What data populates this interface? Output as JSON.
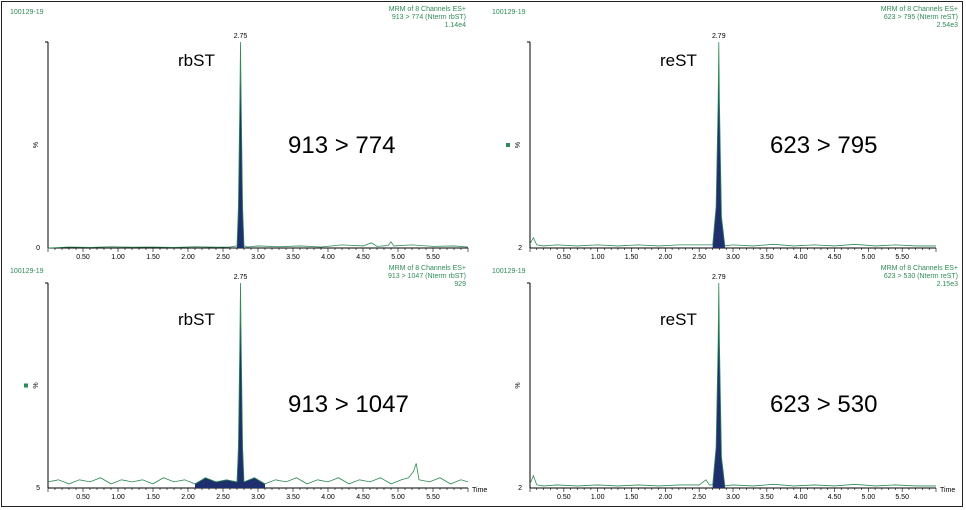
{
  "chart_data": [
    {
      "type": "line",
      "sample_id": "100129-19",
      "header": [
        "MRM of 8 Channels ES+",
        "913 > 774 (Nterm rbST)",
        "1.14e4"
      ],
      "analyte": "rbST",
      "transition": "913 > 774",
      "peak_label": "2.75",
      "ylabel": "%",
      "y_bottom_label": "0",
      "xlabel": "",
      "xlim": [
        0,
        6
      ],
      "ylim": [
        0,
        100
      ],
      "xticks": [
        "0.50",
        "1.00",
        "1.50",
        "2.00",
        "2.50",
        "3.00",
        "3.50",
        "4.00",
        "4.50",
        "5.00",
        "5.50"
      ],
      "x": [
        0.0,
        0.3,
        0.6,
        0.9,
        1.2,
        1.5,
        1.8,
        2.1,
        2.4,
        2.6,
        2.7,
        2.72,
        2.74,
        2.75,
        2.76,
        2.78,
        2.8,
        2.85,
        3.0,
        3.3,
        3.6,
        3.9,
        4.2,
        4.5,
        4.62,
        4.7,
        4.86,
        4.9,
        4.94,
        5.2,
        5.5,
        5.8,
        6.0
      ],
      "y": [
        0,
        0.5,
        0.3,
        0.6,
        0.4,
        0.5,
        0.3,
        0.6,
        0.4,
        0.5,
        1,
        20,
        70,
        100,
        70,
        20,
        1,
        0.5,
        1,
        0.6,
        1,
        0.5,
        1.5,
        1,
        2.5,
        0.8,
        1.2,
        3,
        1,
        1.5,
        0.8,
        1,
        0.5
      ],
      "marker": false
    },
    {
      "type": "line",
      "sample_id": "100129-19",
      "header": [
        "MRM of 8 Channels ES+",
        "623 > 795 (Nterm reST)",
        "2.54e3"
      ],
      "analyte": "reST",
      "transition": "623 > 795",
      "peak_label": "2.79",
      "ylabel": "%",
      "y_bottom_label": "2",
      "xlabel": "",
      "xlim": [
        0,
        6
      ],
      "ylim": [
        0,
        100
      ],
      "xticks": [
        "0.50",
        "1.00",
        "1.50",
        "2.00",
        "2.50",
        "3.00",
        "3.50",
        "4.00",
        "4.50",
        "5.00",
        "5.50"
      ],
      "x": [
        0.0,
        0.05,
        0.1,
        0.2,
        0.4,
        0.7,
        1.0,
        1.3,
        1.6,
        1.9,
        2.2,
        2.5,
        2.7,
        2.75,
        2.78,
        2.79,
        2.8,
        2.83,
        2.88,
        3.0,
        3.3,
        3.6,
        3.9,
        4.2,
        4.5,
        4.8,
        5.1,
        5.4,
        5.7,
        6.0
      ],
      "y": [
        2,
        5,
        1.5,
        1,
        1.5,
        1,
        1.5,
        1,
        1.5,
        1,
        1.5,
        1.5,
        1.5,
        20,
        70,
        100,
        70,
        15,
        1,
        1.5,
        1,
        1.8,
        1,
        1.5,
        1,
        1.8,
        1,
        1.5,
        1,
        1
      ],
      "marker": true
    },
    {
      "type": "line",
      "sample_id": "100129-19",
      "header": [
        "MRM of 8 Channels ES+",
        "913 > 1047 (Nterm rbST)",
        "929"
      ],
      "analyte": "rbST",
      "transition": "913 > 1047",
      "peak_label": "2.75",
      "ylabel": "%",
      "y_bottom_label": "5",
      "xlabel": "Time",
      "xlim": [
        0,
        6
      ],
      "ylim": [
        0,
        100
      ],
      "xticks": [
        "0.50",
        "1.00",
        "1.50",
        "2.00",
        "2.50",
        "3.00",
        "3.50",
        "4.00",
        "4.50",
        "5.00",
        "5.50"
      ],
      "x": [
        0.0,
        0.15,
        0.3,
        0.45,
        0.6,
        0.75,
        0.9,
        1.05,
        1.2,
        1.35,
        1.5,
        1.65,
        1.8,
        1.95,
        2.1,
        2.25,
        2.4,
        2.55,
        2.7,
        2.72,
        2.74,
        2.75,
        2.76,
        2.78,
        2.8,
        2.95,
        3.1,
        3.25,
        3.4,
        3.55,
        3.7,
        3.85,
        4.0,
        4.15,
        4.3,
        4.45,
        4.6,
        4.75,
        4.9,
        5.05,
        5.15,
        5.22,
        5.26,
        5.3,
        5.45,
        5.6,
        5.75,
        5.9,
        6.0
      ],
      "y": [
        3,
        4,
        2,
        4,
        3,
        5,
        2,
        4,
        3,
        4,
        2,
        5,
        3,
        4,
        2,
        5,
        3,
        4,
        3,
        20,
        70,
        100,
        70,
        20,
        3,
        5,
        2,
        4,
        3,
        5,
        2,
        4,
        3,
        5,
        2,
        4,
        3,
        5,
        2,
        4,
        5,
        8,
        12,
        4,
        3,
        5,
        2,
        4,
        3
      ],
      "marker": true
    },
    {
      "type": "line",
      "sample_id": "100129-19",
      "header": [
        "MRM of 8 Channels ES+",
        "623 > 530 (Nterm reST)",
        "2.15e3"
      ],
      "analyte": "reST",
      "transition": "623 > 530",
      "peak_label": "2.79",
      "ylabel": "%",
      "y_bottom_label": "2",
      "xlabel": "Time",
      "xlim": [
        0,
        6
      ],
      "ylim": [
        0,
        100
      ],
      "xticks": [
        "0.50",
        "1.00",
        "1.50",
        "2.00",
        "2.50",
        "3.00",
        "3.50",
        "4.00",
        "4.50",
        "5.00",
        "5.50"
      ],
      "x": [
        0.0,
        0.05,
        0.1,
        0.2,
        0.4,
        0.7,
        1.0,
        1.3,
        1.6,
        1.9,
        2.2,
        2.5,
        2.6,
        2.65,
        2.7,
        2.75,
        2.78,
        2.79,
        2.8,
        2.83,
        2.88,
        3.0,
        3.3,
        3.6,
        3.9,
        4.2,
        4.5,
        4.8,
        5.1,
        5.4,
        5.7,
        6.0
      ],
      "y": [
        2,
        6,
        1.5,
        1,
        1.5,
        1,
        1.5,
        1,
        1.5,
        1,
        1.5,
        1.5,
        4,
        1.5,
        1.5,
        20,
        70,
        100,
        70,
        15,
        1,
        1.5,
        1,
        1.8,
        1,
        1.5,
        1,
        1.8,
        1,
        1.5,
        1,
        1
      ],
      "marker": false
    }
  ],
  "colors": {
    "trace": "#2e8b57",
    "peak_fill": "#1f2f6e",
    "header_text": "#2e8b57",
    "axis": "#000000"
  }
}
